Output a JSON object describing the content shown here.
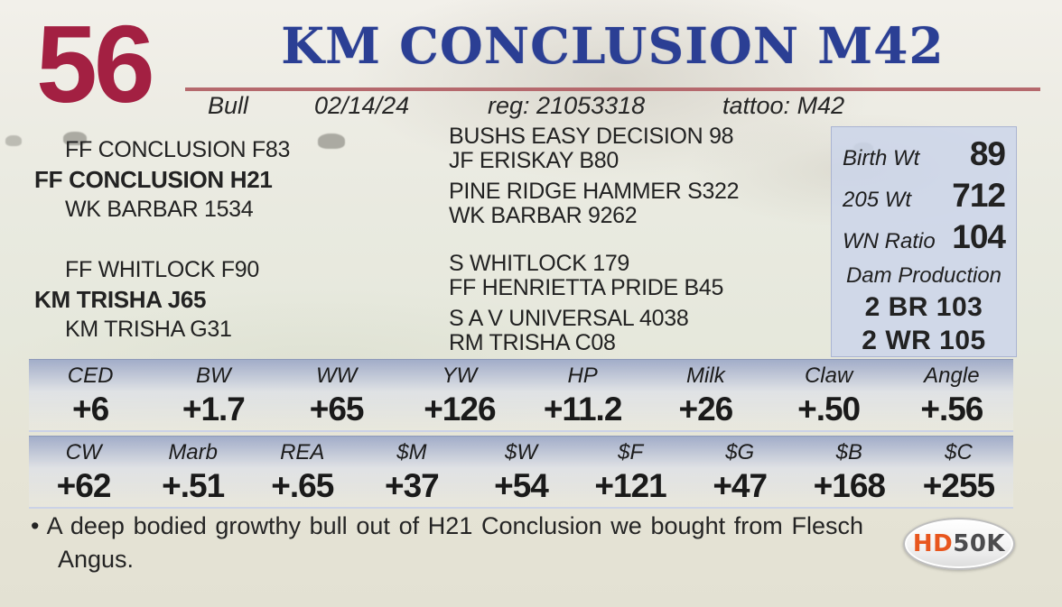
{
  "header": {
    "lot_number": "56",
    "title": "KM CONCLUSION M42",
    "sex": "Bull",
    "birth_date": "02/14/24",
    "reg_label": "reg:",
    "reg_number": "21053318",
    "tattoo_label": "tattoo:",
    "tattoo": "M42"
  },
  "pedigree": {
    "sire_group": {
      "top": "FF CONCLUSION F83",
      "main": "FF CONCLUSION H21",
      "bottom": "WK BARBAR 1534",
      "ancestors": [
        "BUSHS EASY DECISION 98",
        "JF ERISKAY B80",
        "PINE RIDGE HAMMER S322",
        "WK BARBAR 9262"
      ]
    },
    "dam_group": {
      "top": "FF WHITLOCK F90",
      "main": "KM TRISHA J65",
      "bottom": "KM TRISHA G31",
      "ancestors": [
        "S WHITLOCK 179",
        "FF HENRIETTA PRIDE B45",
        "S A V UNIVERSAL 4038",
        "RM TRISHA C08"
      ]
    }
  },
  "performance": {
    "rows": [
      {
        "label": "Birth Wt",
        "value": "89"
      },
      {
        "label": "205 Wt",
        "value": "712"
      },
      {
        "label": "WN Ratio",
        "value": "104"
      }
    ],
    "dam_production_label": "Dam Production",
    "dam_production": [
      "2 BR 103",
      "2 WR 105"
    ]
  },
  "epd": {
    "rows": [
      {
        "cells": [
          {
            "label": "CED",
            "value": "+6"
          },
          {
            "label": "BW",
            "value": "+1.7"
          },
          {
            "label": "WW",
            "value": "+65"
          },
          {
            "label": "YW",
            "value": "+126"
          },
          {
            "label": "HP",
            "value": "+11.2"
          },
          {
            "label": "Milk",
            "value": "+26"
          },
          {
            "label": "Claw",
            "value": "+.50"
          },
          {
            "label": "Angle",
            "value": "+.56"
          }
        ]
      },
      {
        "cells": [
          {
            "label": "CW",
            "value": "+62"
          },
          {
            "label": "Marb",
            "value": "+.51"
          },
          {
            "label": "REA",
            "value": "+.65"
          },
          {
            "label": "$M",
            "value": "+37"
          },
          {
            "label": "$W",
            "value": "+54"
          },
          {
            "label": "$F",
            "value": "+121"
          },
          {
            "label": "$G",
            "value": "+47"
          },
          {
            "label": "$B",
            "value": "+168"
          },
          {
            "label": "$C",
            "value": "+255"
          }
        ]
      }
    ]
  },
  "note": {
    "bullet": "•",
    "text": "A deep bodied growthy bull out of H21 Conclusion we bought from Flesch Angus."
  },
  "logo": {
    "hd": "HD",
    "fifty_k": "50K"
  },
  "colors": {
    "lot_red": "#A32042",
    "title_blue": "#2B3F94",
    "rule_red": "#B5696D",
    "epd_band_blue": "#A2ADC9",
    "stats_box_blue": "#CBD4EA",
    "logo_orange": "#E8561E",
    "logo_gray": "#4C4C4E"
  }
}
